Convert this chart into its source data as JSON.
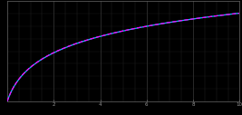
{
  "background_color": "#000000",
  "axes_facecolor": "#000000",
  "grid_color_major": "#3a3a3a",
  "grid_color_minor": "#2a2a2a",
  "line1_color": "#00ccff",
  "line2_color": "#ff00ff",
  "line2_style": "--",
  "line1_style": "-",
  "line_width": 0.9,
  "x_min": 0.0,
  "x_max": 10.0,
  "y_min": 0.0,
  "y_max": 1.0,
  "tick_label_color": "#999999",
  "spine_color": "#666666",
  "figsize": [
    2.67,
    1.27
  ],
  "dpi": 100,
  "curve_scale": 0.88,
  "curve_log_base": 2.5
}
